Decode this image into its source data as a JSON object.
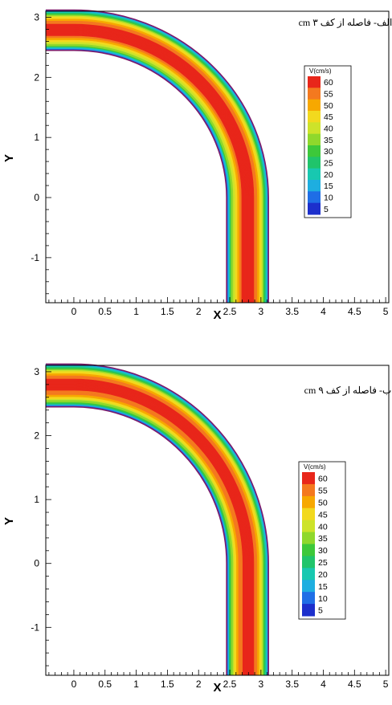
{
  "chart_data": [
    {
      "type": "heatmap",
      "subtype": "filled-contour",
      "caption": "الف- فاصله از کف ۳ cm",
      "xlabel": "X",
      "ylabel": "Y",
      "xlim": [
        -0.45,
        5.05
      ],
      "ylim": [
        -1.75,
        3.1
      ],
      "xticks": [
        0,
        0.5,
        1,
        1.5,
        2,
        2.5,
        3,
        3.5,
        4,
        4.5,
        5
      ],
      "xtick_labels": [
        "0",
        "0.5",
        "1",
        "1.5",
        "2",
        "2.5",
        "3",
        "3.5",
        "4",
        "4.5",
        "5"
      ],
      "yticks": [
        -1,
        0,
        1,
        2,
        3
      ],
      "ytick_labels": [
        "-1",
        "0",
        "1",
        "2",
        "3"
      ],
      "channel": {
        "bend_center": [
          0,
          0
        ],
        "inner_radius": 2.45,
        "outer_radius": 3.12,
        "straight_leg_x": [
          2.45,
          3.12
        ],
        "straight_leg_y": [
          -1.75,
          0
        ],
        "inlet_x_start": -0.45
      },
      "legend": {
        "title": "V(cm/s)",
        "levels": [
          60,
          55,
          50,
          45,
          40,
          35,
          30,
          25,
          20,
          15,
          10,
          5
        ],
        "colors": [
          "#e8261a",
          "#f4791f",
          "#f7a800",
          "#f2d91e",
          "#cde32a",
          "#8fd82c",
          "#3dc83a",
          "#20c46b",
          "#18c8b0",
          "#1eaee0",
          "#1f6ee6",
          "#1c2fcc"
        ],
        "placement": "right"
      },
      "radial_velocity_profile": {
        "positions_from_inner_wall": [
          0.0,
          0.06,
          0.14,
          0.24,
          0.34,
          0.44,
          0.52,
          0.58,
          0.62,
          0.67
        ],
        "values": [
          5,
          30,
          45,
          58,
          60,
          58,
          47,
          36,
          24,
          5
        ]
      }
    },
    {
      "type": "heatmap",
      "subtype": "filled-contour",
      "caption": "ب- فاصله از کف ۹ cm",
      "xlabel": "X",
      "ylabel": "Y",
      "xlim": [
        -0.45,
        5.05
      ],
      "ylim": [
        -1.75,
        3.1
      ],
      "xticks": [
        0,
        0.5,
        1,
        1.5,
        2,
        2.5,
        3,
        3.5,
        4,
        4.5,
        5
      ],
      "xtick_labels": [
        "0",
        "0.5",
        "1",
        "1.5",
        "2",
        "2.5",
        "3",
        "3.5",
        "4",
        "4.5",
        "5"
      ],
      "yticks": [
        -1,
        0,
        1,
        2,
        3
      ],
      "ytick_labels": [
        "-1",
        "0",
        "1",
        "2",
        "3"
      ],
      "channel": {
        "bend_center": [
          0,
          0
        ],
        "inner_radius": 2.45,
        "outer_radius": 3.12,
        "straight_leg_x": [
          2.45,
          3.12
        ],
        "straight_leg_y": [
          -1.75,
          0
        ],
        "inlet_x_start": -0.45
      },
      "legend": {
        "title": "V(cm/s)",
        "levels": [
          60,
          55,
          50,
          45,
          40,
          35,
          30,
          25,
          20,
          15,
          10,
          5
        ],
        "colors": [
          "#e8261a",
          "#f4791f",
          "#f7a800",
          "#f2d91e",
          "#cde32a",
          "#8fd82c",
          "#3dc83a",
          "#20c46b",
          "#18c8b0",
          "#1eaee0",
          "#1f6ee6",
          "#1c2fcc"
        ],
        "placement": "right"
      },
      "radial_velocity_profile": {
        "positions_from_inner_wall": [
          0.0,
          0.05,
          0.12,
          0.2,
          0.3,
          0.4,
          0.5,
          0.57,
          0.62,
          0.67
        ],
        "values": [
          5,
          28,
          42,
          55,
          60,
          60,
          52,
          38,
          24,
          5
        ]
      }
    }
  ]
}
